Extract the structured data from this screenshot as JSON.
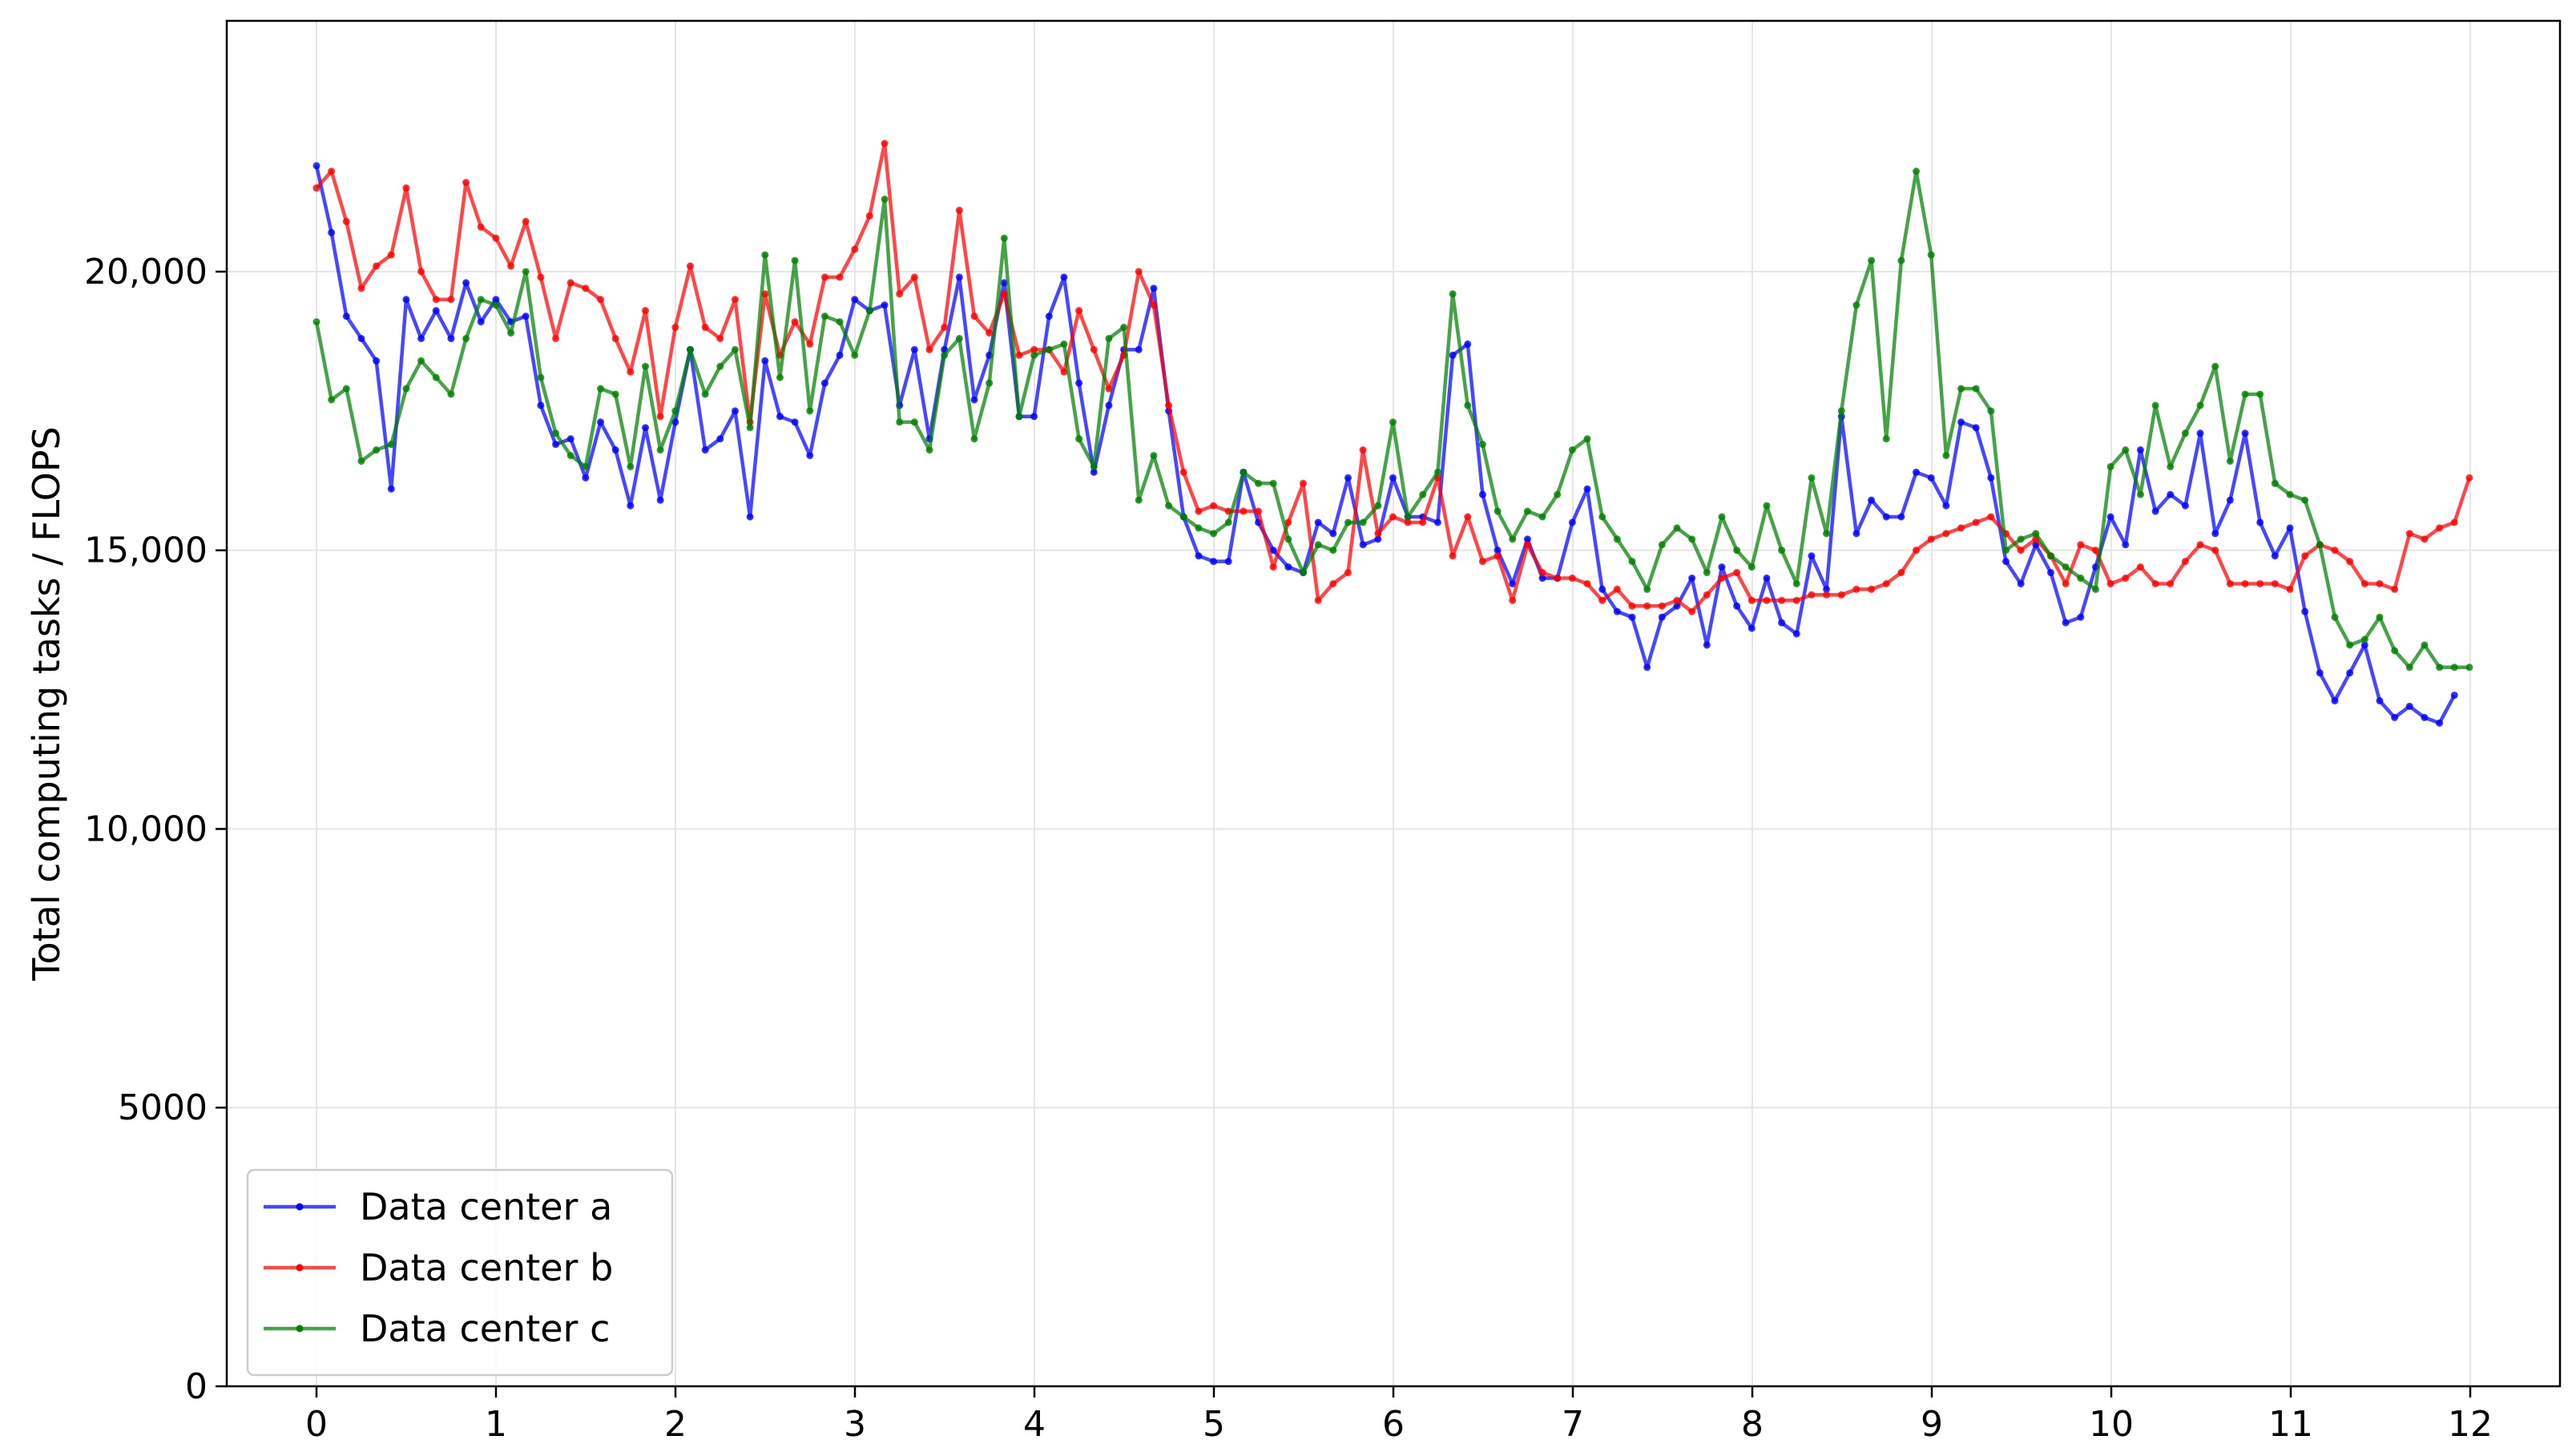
{
  "chart_data": {
    "type": "line",
    "title": "",
    "xlabel": "",
    "ylabel": "Total computing tasks / FLOPS",
    "xlim": [
      -0.5,
      12.5
    ],
    "ylim": [
      0,
      24500
    ],
    "x_ticks": [
      0,
      1,
      2,
      3,
      4,
      5,
      6,
      7,
      8,
      9,
      10,
      11,
      12
    ],
    "x_tick_labels": [
      "0",
      "1",
      "2",
      "3",
      "4",
      "5",
      "6",
      "7",
      "8",
      "9",
      "10",
      "11",
      "12"
    ],
    "y_ticks": [
      0,
      5000,
      10000,
      15000,
      20000
    ],
    "y_tick_labels": [
      "0",
      "5000",
      "10,000",
      "15,000",
      "20,000"
    ],
    "grid": true,
    "legend_position": "lower-left",
    "x_start": 0.0,
    "x_step": 0.0833,
    "series": [
      {
        "name": "Data center a",
        "color": "#0000ff",
        "values": [
          21900,
          20700,
          19200,
          18800,
          18400,
          16100,
          19500,
          18800,
          19300,
          18800,
          19800,
          19100,
          19500,
          19100,
          19200,
          17600,
          16900,
          17000,
          16300,
          17300,
          16800,
          15800,
          17200,
          15900,
          17300,
          18600,
          16800,
          17000,
          17500,
          15600,
          18400,
          17400,
          17300,
          16700,
          18000,
          18500,
          19500,
          19300,
          19400,
          17600,
          18600,
          17000,
          18600,
          19900,
          17700,
          18500,
          19800,
          17400,
          17400,
          19200,
          19900,
          18000,
          16400,
          17600,
          18600,
          18600,
          19700,
          17500,
          15600,
          14900,
          14800,
          14800,
          16400,
          15500,
          15000,
          14700,
          14600,
          15500,
          15300,
          16300,
          15100,
          15200,
          16300,
          15600,
          15600,
          15500,
          18500,
          18700,
          16000,
          15000,
          14400,
          15200,
          14500,
          14500,
          15500,
          16100,
          14300,
          13900,
          13800,
          12900,
          13800,
          14000,
          14500,
          13300,
          14700,
          14000,
          13600,
          14500,
          13700,
          13500,
          14900,
          14300,
          17400,
          15300,
          15900,
          15600,
          15600,
          16400,
          16300,
          15800,
          17300,
          17200,
          16300,
          14800,
          14400,
          15100,
          14600,
          13700,
          13800,
          14700,
          15600,
          15100,
          16800,
          15700,
          16000,
          15800,
          17100,
          15300,
          15900,
          17100,
          15500,
          14900,
          15400,
          13900,
          12800,
          12300,
          12800,
          13300,
          12300,
          12000,
          12200,
          12000,
          11900,
          12400
        ]
      },
      {
        "name": "Data center b",
        "color": "#ff0000",
        "values": [
          21500,
          21800,
          20900,
          19700,
          20100,
          20300,
          21500,
          20000,
          19500,
          19500,
          21600,
          20800,
          20600,
          20100,
          20900,
          19900,
          18800,
          19800,
          19700,
          19500,
          18800,
          18200,
          19300,
          17400,
          19000,
          20100,
          19000,
          18800,
          19500,
          17300,
          19600,
          18500,
          19100,
          18700,
          19900,
          19900,
          20400,
          21000,
          22300,
          19600,
          19900,
          18600,
          19000,
          21100,
          19200,
          18900,
          19600,
          18500,
          18600,
          18600,
          18200,
          19300,
          18600,
          17900,
          18500,
          20000,
          19400,
          17600,
          16400,
          15700,
          15800,
          15700,
          15700,
          15700,
          14700,
          15500,
          16200,
          14100,
          14400,
          14600,
          16800,
          15300,
          15600,
          15500,
          15500,
          16300,
          14900,
          15600,
          14800,
          14900,
          14100,
          15100,
          14600,
          14500,
          14500,
          14400,
          14100,
          14300,
          14000,
          14000,
          14000,
          14100,
          13900,
          14200,
          14500,
          14600,
          14100,
          14100,
          14100,
          14100,
          14200,
          14200,
          14200,
          14300,
          14300,
          14400,
          14600,
          15000,
          15200,
          15300,
          15400,
          15500,
          15600,
          15300,
          15000,
          15200,
          14900,
          14400,
          15100,
          15000,
          14400,
          14500,
          14700,
          14400,
          14400,
          14800,
          15100,
          15000,
          14400,
          14400,
          14400,
          14400,
          14300,
          14900,
          15100,
          15000,
          14800,
          14400,
          14400,
          14300,
          15300,
          15200,
          15400,
          15500,
          16300
        ]
      },
      {
        "name": "Data center c",
        "color": "#008000",
        "values": [
          19100,
          17700,
          17900,
          16600,
          16800,
          16900,
          17900,
          18400,
          18100,
          17800,
          18800,
          19500,
          19400,
          18900,
          20000,
          18100,
          17100,
          16700,
          16500,
          17900,
          17800,
          16500,
          18300,
          16800,
          17500,
          18600,
          17800,
          18300,
          18600,
          17200,
          20300,
          18100,
          20200,
          17500,
          19200,
          19100,
          18500,
          19300,
          21300,
          17300,
          17300,
          16800,
          18500,
          18800,
          17000,
          18000,
          20600,
          17400,
          18500,
          18600,
          18700,
          17000,
          16500,
          18800,
          19000,
          15900,
          16700,
          15800,
          15600,
          15400,
          15300,
          15500,
          16400,
          16200,
          16200,
          15200,
          14600,
          15100,
          15000,
          15500,
          15500,
          15800,
          17300,
          15600,
          16000,
          16400,
          19600,
          17600,
          16900,
          15700,
          15200,
          15700,
          15600,
          16000,
          16800,
          17000,
          15600,
          15200,
          14800,
          14300,
          15100,
          15400,
          15200,
          14600,
          15600,
          15000,
          14700,
          15800,
          15000,
          14400,
          16300,
          15300,
          17500,
          19400,
          20200,
          17000,
          20200,
          21800,
          20300,
          16700,
          17900,
          17900,
          17500,
          15000,
          15200,
          15300,
          14900,
          14700,
          14500,
          14300,
          16500,
          16800,
          16000,
          17600,
          16500,
          17100,
          17600,
          18300,
          16600,
          17800,
          17800,
          16200,
          16000,
          15900,
          15100,
          13800,
          13300,
          13400,
          13800,
          13200,
          12900,
          13300,
          12900,
          12900,
          12900
        ]
      }
    ]
  }
}
